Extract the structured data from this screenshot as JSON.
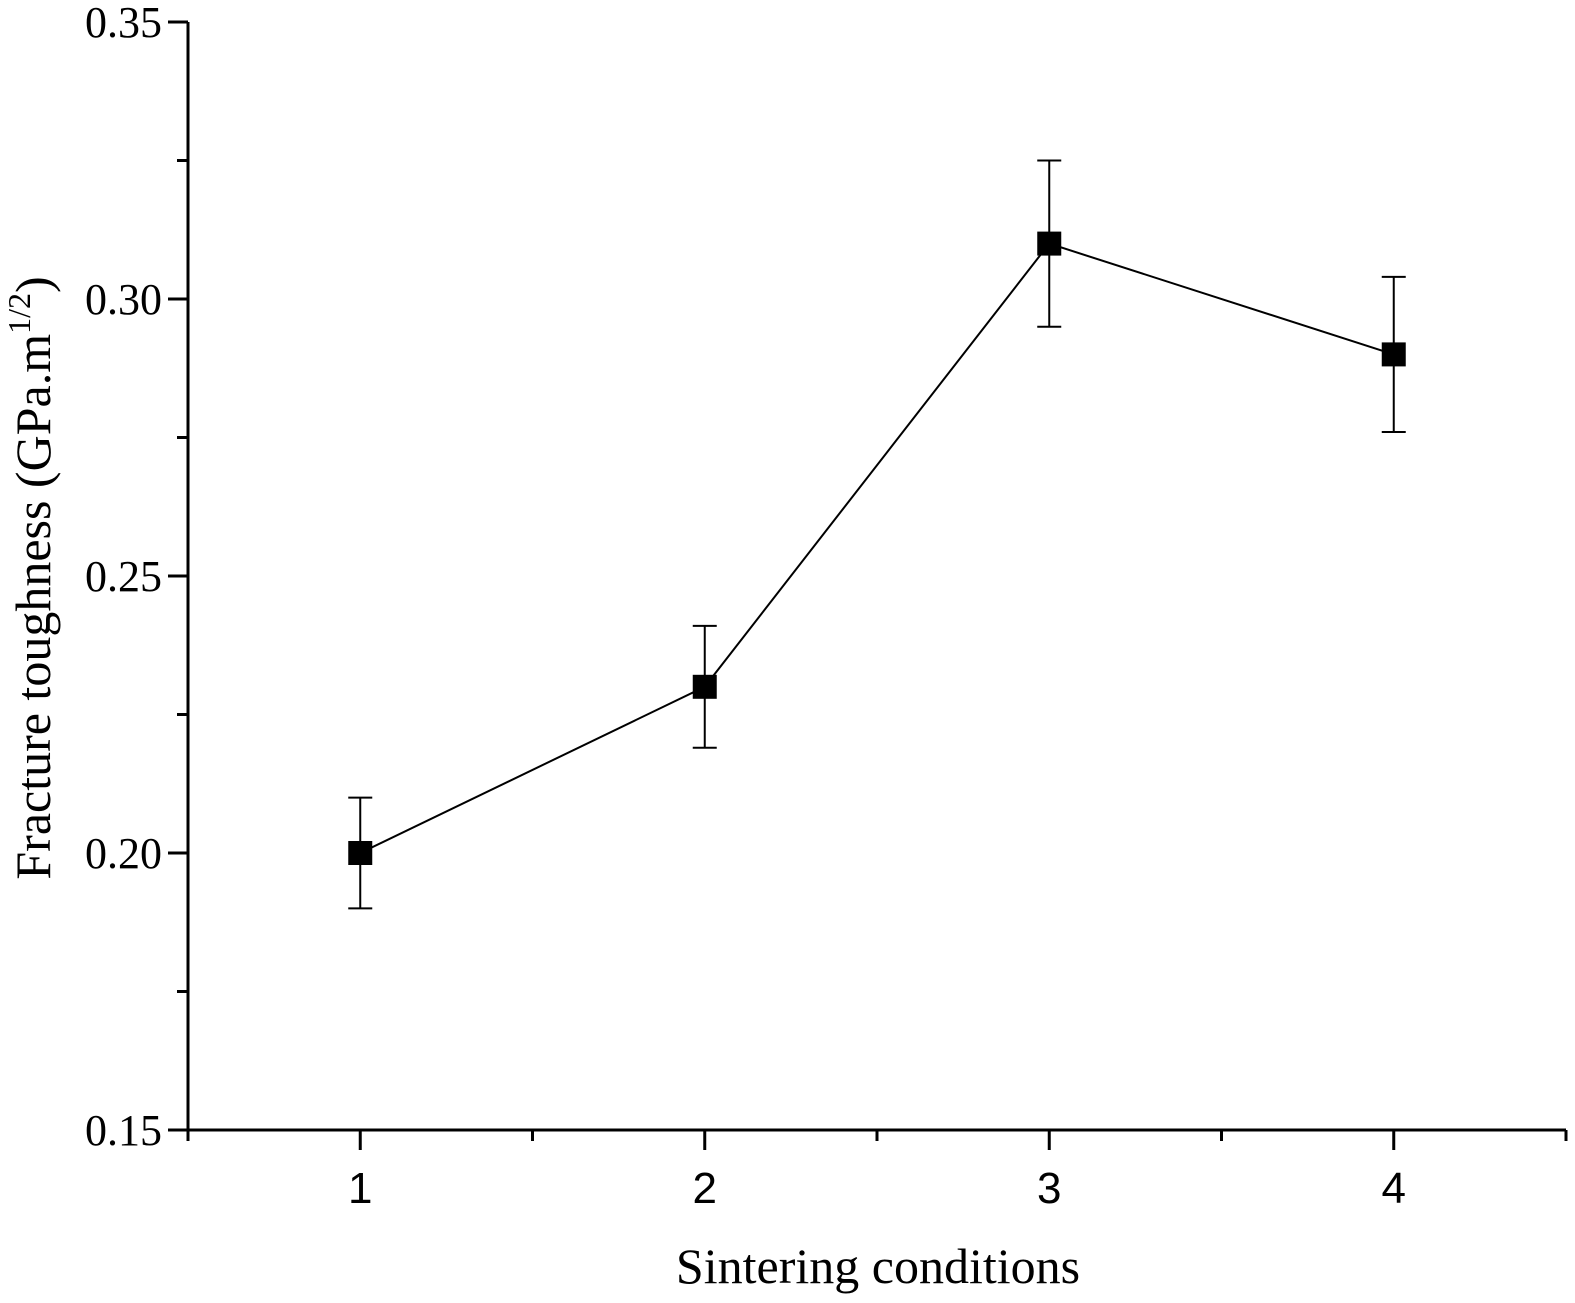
{
  "chart_data": {
    "type": "line",
    "title": "",
    "xlabel": "Sintering conditions",
    "ylabel": {
      "main": "Fracture toughness (GPa.m",
      "superscript": "1/2",
      "close": ")"
    },
    "xlim": [
      0.5,
      4.5
    ],
    "ylim": [
      0.15,
      0.35
    ],
    "x_major_ticks": [
      1,
      2,
      3,
      4
    ],
    "x_tick_labels": [
      "1",
      "2",
      "3",
      "4"
    ],
    "x_minor_ticks": [
      0.5,
      1.5,
      2.5,
      3.5,
      4.5
    ],
    "y_major_ticks": [
      0.15,
      0.2,
      0.25,
      0.3,
      0.35
    ],
    "y_tick_labels": [
      "0.15",
      "0.20",
      "0.25",
      "0.30",
      "0.35"
    ],
    "y_minor_ticks": [
      0.175,
      0.225,
      0.275,
      0.325
    ],
    "grid": false,
    "legend": "none",
    "series": [
      {
        "x": [
          1,
          2,
          3,
          4
        ],
        "values": [
          0.2,
          0.23,
          0.31,
          0.29
        ],
        "error_upper": [
          0.21,
          0.241,
          0.325,
          0.304
        ],
        "error_lower": [
          0.19,
          0.219,
          0.295,
          0.276
        ],
        "marker": "square",
        "color": "#000000"
      }
    ]
  }
}
